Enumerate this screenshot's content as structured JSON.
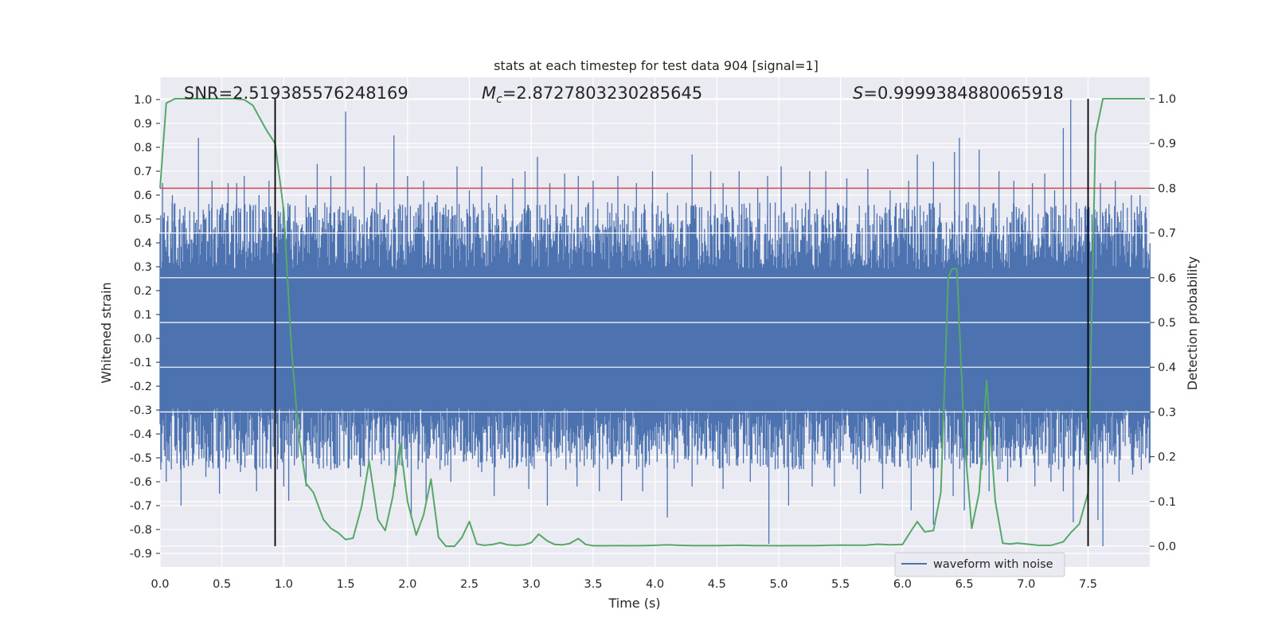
{
  "chart_data": {
    "type": "line",
    "title": "stats at each timestep for test data 904 [signal=1]",
    "xlabel": "Time (s)",
    "ylabel_left": "Whitened strain",
    "ylabel_right": "Detection probability",
    "xlim": [
      0.0,
      8.0
    ],
    "ylim_left": [
      -0.96,
      1.09
    ],
    "ylim_right": [
      -0.047,
      1.047
    ],
    "x_ticks": [
      "0.0",
      "0.5",
      "1.0",
      "1.5",
      "2.0",
      "2.5",
      "3.0",
      "3.5",
      "4.0",
      "4.5",
      "5.0",
      "5.5",
      "6.0",
      "6.5",
      "7.0",
      "7.5"
    ],
    "y_ticks_left": [
      "1.0",
      "0.9",
      "0.8",
      "0.7",
      "0.6",
      "0.5",
      "0.4",
      "0.3",
      "0.2",
      "0.1",
      "0.0",
      "-0.1",
      "-0.2",
      "-0.3",
      "-0.4",
      "-0.5",
      "-0.6",
      "-0.7",
      "-0.8",
      "-0.9"
    ],
    "y_ticks_right": [
      "1.0",
      "0.9",
      "0.8",
      "0.7",
      "0.6",
      "0.5",
      "0.4",
      "0.3",
      "0.2",
      "0.1",
      "0.0"
    ],
    "grid": true,
    "annotations": {
      "snr": "SNR=2.519385576248169",
      "mc_symbol": "M",
      "mc_sub": "c",
      "mc_value": "=2.8727803230285645",
      "s_symbol": "S",
      "s_value": "=0.9999384880065918"
    },
    "threshold_line": {
      "y_right": 0.8,
      "color": "#c44e52"
    },
    "vertical_lines": {
      "x": [
        0.93,
        7.5
      ],
      "y_right_range": [
        0.0,
        1.0
      ],
      "color": "#000000"
    },
    "waveform": {
      "name": "waveform with noise",
      "color": "#4c72b0",
      "core_envelope": 0.29,
      "positive_spikes": [
        [
          0.02,
          0.65
        ],
        [
          0.1,
          0.6
        ],
        [
          0.2,
          0.55
        ],
        [
          0.31,
          0.84
        ],
        [
          0.42,
          0.66
        ],
        [
          0.55,
          0.65
        ],
        [
          0.62,
          0.65
        ],
        [
          0.68,
          0.68
        ],
        [
          0.8,
          0.6
        ],
        [
          0.88,
          0.66
        ],
        [
          1.05,
          0.56
        ],
        [
          1.18,
          0.6
        ],
        [
          1.27,
          0.73
        ],
        [
          1.38,
          0.68
        ],
        [
          1.5,
          0.95
        ],
        [
          1.65,
          0.72
        ],
        [
          1.75,
          0.65
        ],
        [
          1.89,
          0.85
        ],
        [
          2.0,
          0.68
        ],
        [
          2.13,
          0.66
        ],
        [
          2.24,
          0.6
        ],
        [
          2.4,
          0.72
        ],
        [
          2.5,
          0.62
        ],
        [
          2.6,
          0.72
        ],
        [
          2.72,
          0.6
        ],
        [
          2.85,
          0.67
        ],
        [
          2.95,
          0.7
        ],
        [
          3.05,
          0.76
        ],
        [
          3.15,
          0.65
        ],
        [
          3.27,
          0.69
        ],
        [
          3.38,
          0.68
        ],
        [
          3.5,
          0.66
        ],
        [
          3.7,
          0.68
        ],
        [
          3.85,
          0.65
        ],
        [
          3.98,
          0.7
        ],
        [
          4.1,
          0.61
        ],
        [
          4.3,
          0.77
        ],
        [
          4.45,
          0.7
        ],
        [
          4.55,
          0.65
        ],
        [
          4.68,
          0.7
        ],
        [
          4.83,
          0.63
        ],
        [
          4.91,
          0.68
        ],
        [
          5.02,
          0.72
        ],
        [
          5.25,
          0.7
        ],
        [
          5.38,
          0.7
        ],
        [
          5.55,
          0.67
        ],
        [
          5.72,
          0.71
        ],
        [
          5.9,
          0.62
        ],
        [
          6.05,
          0.66
        ],
        [
          6.12,
          0.77
        ],
        [
          6.25,
          0.74
        ],
        [
          6.42,
          0.78
        ],
        [
          6.46,
          0.84
        ],
        [
          6.62,
          0.79
        ],
        [
          6.78,
          0.7
        ],
        [
          6.9,
          0.66
        ],
        [
          7.05,
          0.65
        ],
        [
          7.15,
          0.69
        ],
        [
          7.23,
          0.62
        ],
        [
          7.3,
          0.88
        ],
        [
          7.36,
          1.0
        ],
        [
          7.5,
          0.71
        ],
        [
          7.6,
          0.65
        ],
        [
          7.72,
          0.66
        ],
        [
          7.85,
          0.6
        ],
        [
          7.92,
          0.6
        ]
      ],
      "negative_spikes": [
        [
          0.05,
          -0.6
        ],
        [
          0.17,
          -0.7
        ],
        [
          0.37,
          -0.58
        ],
        [
          0.48,
          -0.65
        ],
        [
          0.65,
          -0.56
        ],
        [
          0.78,
          -0.64
        ],
        [
          1.0,
          -0.62
        ],
        [
          1.04,
          -0.68
        ],
        [
          1.18,
          -0.62
        ],
        [
          1.38,
          -0.55
        ],
        [
          1.62,
          -0.58
        ],
        [
          1.9,
          -0.62
        ],
        [
          2.03,
          -0.75
        ],
        [
          2.15,
          -0.68
        ],
        [
          2.35,
          -0.6
        ],
        [
          2.6,
          -0.56
        ],
        [
          2.7,
          -0.66
        ],
        [
          2.98,
          -0.63
        ],
        [
          3.13,
          -0.7
        ],
        [
          3.37,
          -0.62
        ],
        [
          3.55,
          -0.64
        ],
        [
          3.73,
          -0.68
        ],
        [
          3.9,
          -0.64
        ],
        [
          4.1,
          -0.75
        ],
        [
          4.3,
          -0.62
        ],
        [
          4.55,
          -0.63
        ],
        [
          4.77,
          -0.6
        ],
        [
          4.92,
          -0.86
        ],
        [
          5.08,
          -0.7
        ],
        [
          5.27,
          -0.62
        ],
        [
          5.45,
          -0.62
        ],
        [
          5.66,
          -0.65
        ],
        [
          5.84,
          -0.63
        ],
        [
          6.07,
          -0.72
        ],
        [
          6.25,
          -0.78
        ],
        [
          6.41,
          -0.66
        ],
        [
          6.5,
          -0.72
        ],
        [
          6.7,
          -0.64
        ],
        [
          6.85,
          -0.6
        ],
        [
          7.07,
          -0.62
        ],
        [
          7.2,
          -0.6
        ],
        [
          7.3,
          -0.64
        ],
        [
          7.38,
          -0.77
        ],
        [
          7.43,
          -0.55
        ],
        [
          7.5,
          -0.68
        ],
        [
          7.58,
          -0.76
        ],
        [
          7.62,
          -0.87
        ],
        [
          7.75,
          -0.6
        ],
        [
          7.86,
          -0.57
        ],
        [
          7.93,
          -0.55
        ]
      ]
    },
    "probability": {
      "name": "detection probability",
      "color": "#55a868",
      "x": [
        0.0,
        0.05,
        0.12,
        0.2,
        0.3,
        0.4,
        0.5,
        0.6,
        0.68,
        0.75,
        0.8,
        0.86,
        0.93,
        1.0,
        1.06,
        1.12,
        1.18,
        1.24,
        1.32,
        1.38,
        1.44,
        1.5,
        1.56,
        1.63,
        1.69,
        1.76,
        1.82,
        1.88,
        1.94,
        2.0,
        2.07,
        2.13,
        2.19,
        2.25,
        2.31,
        2.38,
        2.44,
        2.5,
        2.56,
        2.62,
        2.69,
        2.75,
        2.81,
        2.88,
        2.94,
        3.0,
        3.06,
        3.13,
        3.19,
        3.25,
        3.31,
        3.38,
        3.44,
        3.5,
        3.6,
        3.7,
        3.8,
        3.9,
        4.0,
        4.1,
        4.2,
        4.3,
        4.4,
        4.5,
        4.6,
        4.7,
        4.8,
        4.9,
        5.0,
        5.1,
        5.2,
        5.3,
        5.4,
        5.5,
        5.6,
        5.7,
        5.8,
        5.9,
        6.0,
        6.06,
        6.12,
        6.18,
        6.25,
        6.31,
        6.37,
        6.4,
        6.44,
        6.5,
        6.56,
        6.62,
        6.68,
        6.75,
        6.81,
        6.87,
        6.93,
        7.0,
        7.1,
        7.2,
        7.3,
        7.36,
        7.43,
        7.5,
        7.56,
        7.62,
        7.7,
        7.8,
        7.9,
        7.96
      ],
      "y": [
        0.8,
        0.99,
        1.0,
        1.0,
        1.0,
        1.0,
        1.0,
        1.0,
        0.998,
        0.985,
        0.96,
        0.93,
        0.9,
        0.75,
        0.45,
        0.25,
        0.14,
        0.12,
        0.06,
        0.04,
        0.03,
        0.015,
        0.018,
        0.09,
        0.19,
        0.06,
        0.035,
        0.11,
        0.23,
        0.1,
        0.025,
        0.07,
        0.15,
        0.02,
        0.0,
        0.0,
        0.02,
        0.055,
        0.005,
        0.002,
        0.004,
        0.008,
        0.003,
        0.002,
        0.003,
        0.008,
        0.027,
        0.012,
        0.004,
        0.003,
        0.006,
        0.017,
        0.004,
        0.001,
        0.001,
        0.0012,
        0.001,
        0.0012,
        0.002,
        0.003,
        0.002,
        0.0015,
        0.0012,
        0.0012,
        0.0018,
        0.0022,
        0.0012,
        0.0012,
        0.001,
        0.0015,
        0.0012,
        0.0015,
        0.002,
        0.0025,
        0.0022,
        0.0022,
        0.0045,
        0.003,
        0.004,
        0.03,
        0.055,
        0.032,
        0.035,
        0.12,
        0.6,
        0.62,
        0.62,
        0.24,
        0.04,
        0.12,
        0.37,
        0.1,
        0.007,
        0.005,
        0.007,
        0.005,
        0.002,
        0.002,
        0.01,
        0.03,
        0.05,
        0.12,
        0.92,
        1.0,
        1.0,
        1.0,
        1.0,
        1.0
      ]
    },
    "legend": {
      "entries": [
        "waveform with noise"
      ],
      "position": "bottom-right"
    }
  }
}
